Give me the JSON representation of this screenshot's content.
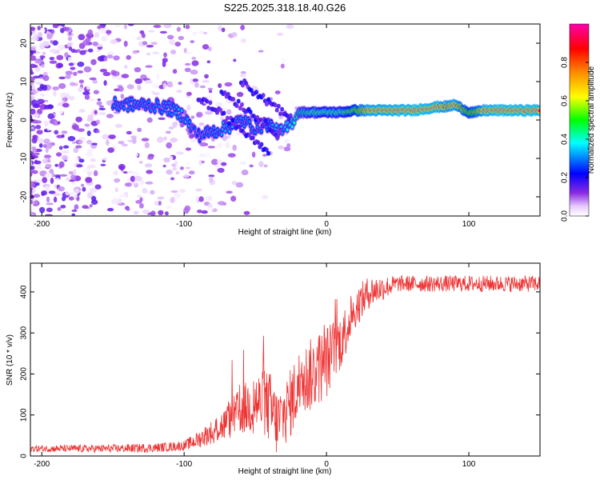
{
  "title": "S225.2025.318.18.40.G26",
  "chart_data": [
    {
      "type": "heatmap",
      "xlabel": "Height of straight line (km)",
      "ylabel": "Frequency (Hz)",
      "xlim": [
        -208,
        150
      ],
      "ylim": [
        -25,
        25
      ],
      "xticks": [
        -200,
        -100,
        0,
        100
      ],
      "yticks": [
        -20,
        -10,
        0,
        10,
        20
      ],
      "colorbar": {
        "label": "Normalized spectral amplitude",
        "range": [
          0,
          1
        ],
        "ticks": [
          0.0,
          0.2,
          0.4,
          0.6,
          0.8
        ]
      },
      "ridge": {
        "description": "dominant frequency track",
        "x": [
          -150,
          -125,
          -110,
          -100,
          -95,
          -90,
          -80,
          -70,
          -60,
          -50,
          -40,
          -35,
          -30,
          -25,
          -20,
          -10,
          0,
          10,
          20,
          30,
          60,
          70,
          80,
          85,
          90,
          95,
          100,
          105,
          110,
          120,
          150
        ],
        "y": [
          4,
          4,
          3,
          1,
          -2,
          -4,
          -3,
          -2,
          0,
          -2,
          -1,
          -3,
          -3,
          -1,
          2,
          2,
          2,
          2,
          2.5,
          2.5,
          2.5,
          3,
          3.5,
          3.5,
          4,
          3,
          2,
          2,
          2.5,
          2.5,
          2.5
        ],
        "amplitude": [
          0.3,
          0.3,
          0.3,
          0.35,
          0.3,
          0.25,
          0.3,
          0.35,
          0.3,
          0.3,
          0.3,
          0.35,
          0.35,
          0.4,
          0.45,
          0.55,
          0.55,
          0.55,
          0.7,
          0.9,
          0.95,
          0.95,
          0.9,
          0.85,
          0.9,
          0.8,
          0.7,
          0.75,
          0.9,
          0.95,
          0.95
        ]
      },
      "noise_region": {
        "x": [
          -208,
          -80
        ],
        "amplitude_max": 0.15
      }
    },
    {
      "type": "line",
      "xlabel": "Height of straight line (km)",
      "ylabel": "SNR (10 * v/v)",
      "xlim": [
        -208,
        150
      ],
      "ylim": [
        0,
        470
      ],
      "xticks": [
        -200,
        -100,
        0,
        100
      ],
      "yticks": [
        0,
        100,
        200,
        300,
        400
      ],
      "color": "#ee3333",
      "trend": {
        "x": [
          -208,
          -150,
          -120,
          -100,
          -90,
          -80,
          -70,
          -60,
          -50,
          -40,
          -35,
          -30,
          -25,
          -20,
          -10,
          0,
          10,
          20,
          30,
          50,
          100,
          150
        ],
        "y": [
          18,
          18,
          20,
          25,
          40,
          60,
          80,
          110,
          130,
          120,
          80,
          100,
          130,
          170,
          200,
          230,
          280,
          360,
          400,
          420,
          420,
          420
        ]
      },
      "noise": {
        "x": [
          -208,
          -100,
          -80,
          -60,
          -40,
          -30,
          -20,
          0,
          20,
          50,
          150
        ],
        "amplitude": [
          8,
          12,
          30,
          60,
          90,
          80,
          90,
          90,
          50,
          20,
          20
        ]
      }
    }
  ]
}
